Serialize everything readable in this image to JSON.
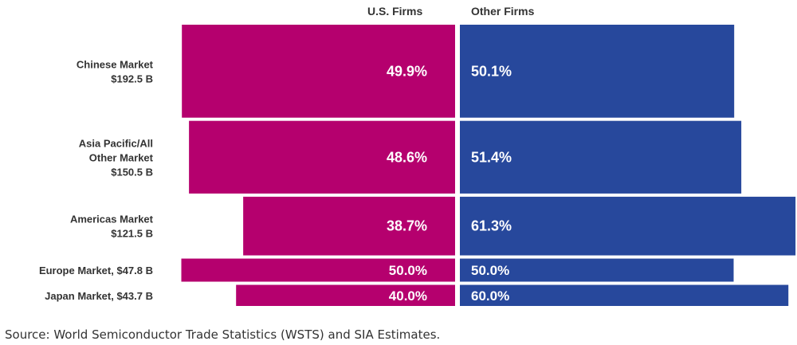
{
  "headers": {
    "us": "U.S. Firms",
    "other": "Other Firms"
  },
  "source": "Source: World Semiconductor Trade Statistics (WSTS) and SIA Estimates.",
  "colors": {
    "us": "#b5006e",
    "other": "#27489c",
    "label": "#333333"
  },
  "chart_data": {
    "type": "bar",
    "subtype": "mekko-diverging-stacked",
    "series": [
      {
        "name": "U.S. Firms",
        "values": [
          49.9,
          48.6,
          38.7,
          50.0,
          40.0
        ],
        "labels": [
          "49.9%",
          "48.6%",
          "38.7%",
          "50.0%",
          "40.0%"
        ]
      },
      {
        "name": "Other Firms",
        "values": [
          50.1,
          51.4,
          61.3,
          50.0,
          60.0
        ],
        "labels": [
          "50.1%",
          "51.4%",
          "61.3%",
          "50.0%",
          "60.0%"
        ]
      }
    ],
    "categories": [
      {
        "lines": [
          "Chinese Market",
          "$192.5 B"
        ],
        "market_size_b": 192.5
      },
      {
        "lines": [
          "Asia Pacific/All",
          "Other Market",
          "$150.5 B"
        ],
        "market_size_b": 150.5
      },
      {
        "lines": [
          "Americas Market",
          "$121.5 B"
        ],
        "market_size_b": 121.5
      },
      {
        "lines": [
          "Europe Market, $47.8 B"
        ],
        "market_size_b": 47.8
      },
      {
        "lines": [
          "Japan Market, $43.7 B"
        ],
        "market_size_b": 43.7
      }
    ],
    "legend": "top"
  }
}
